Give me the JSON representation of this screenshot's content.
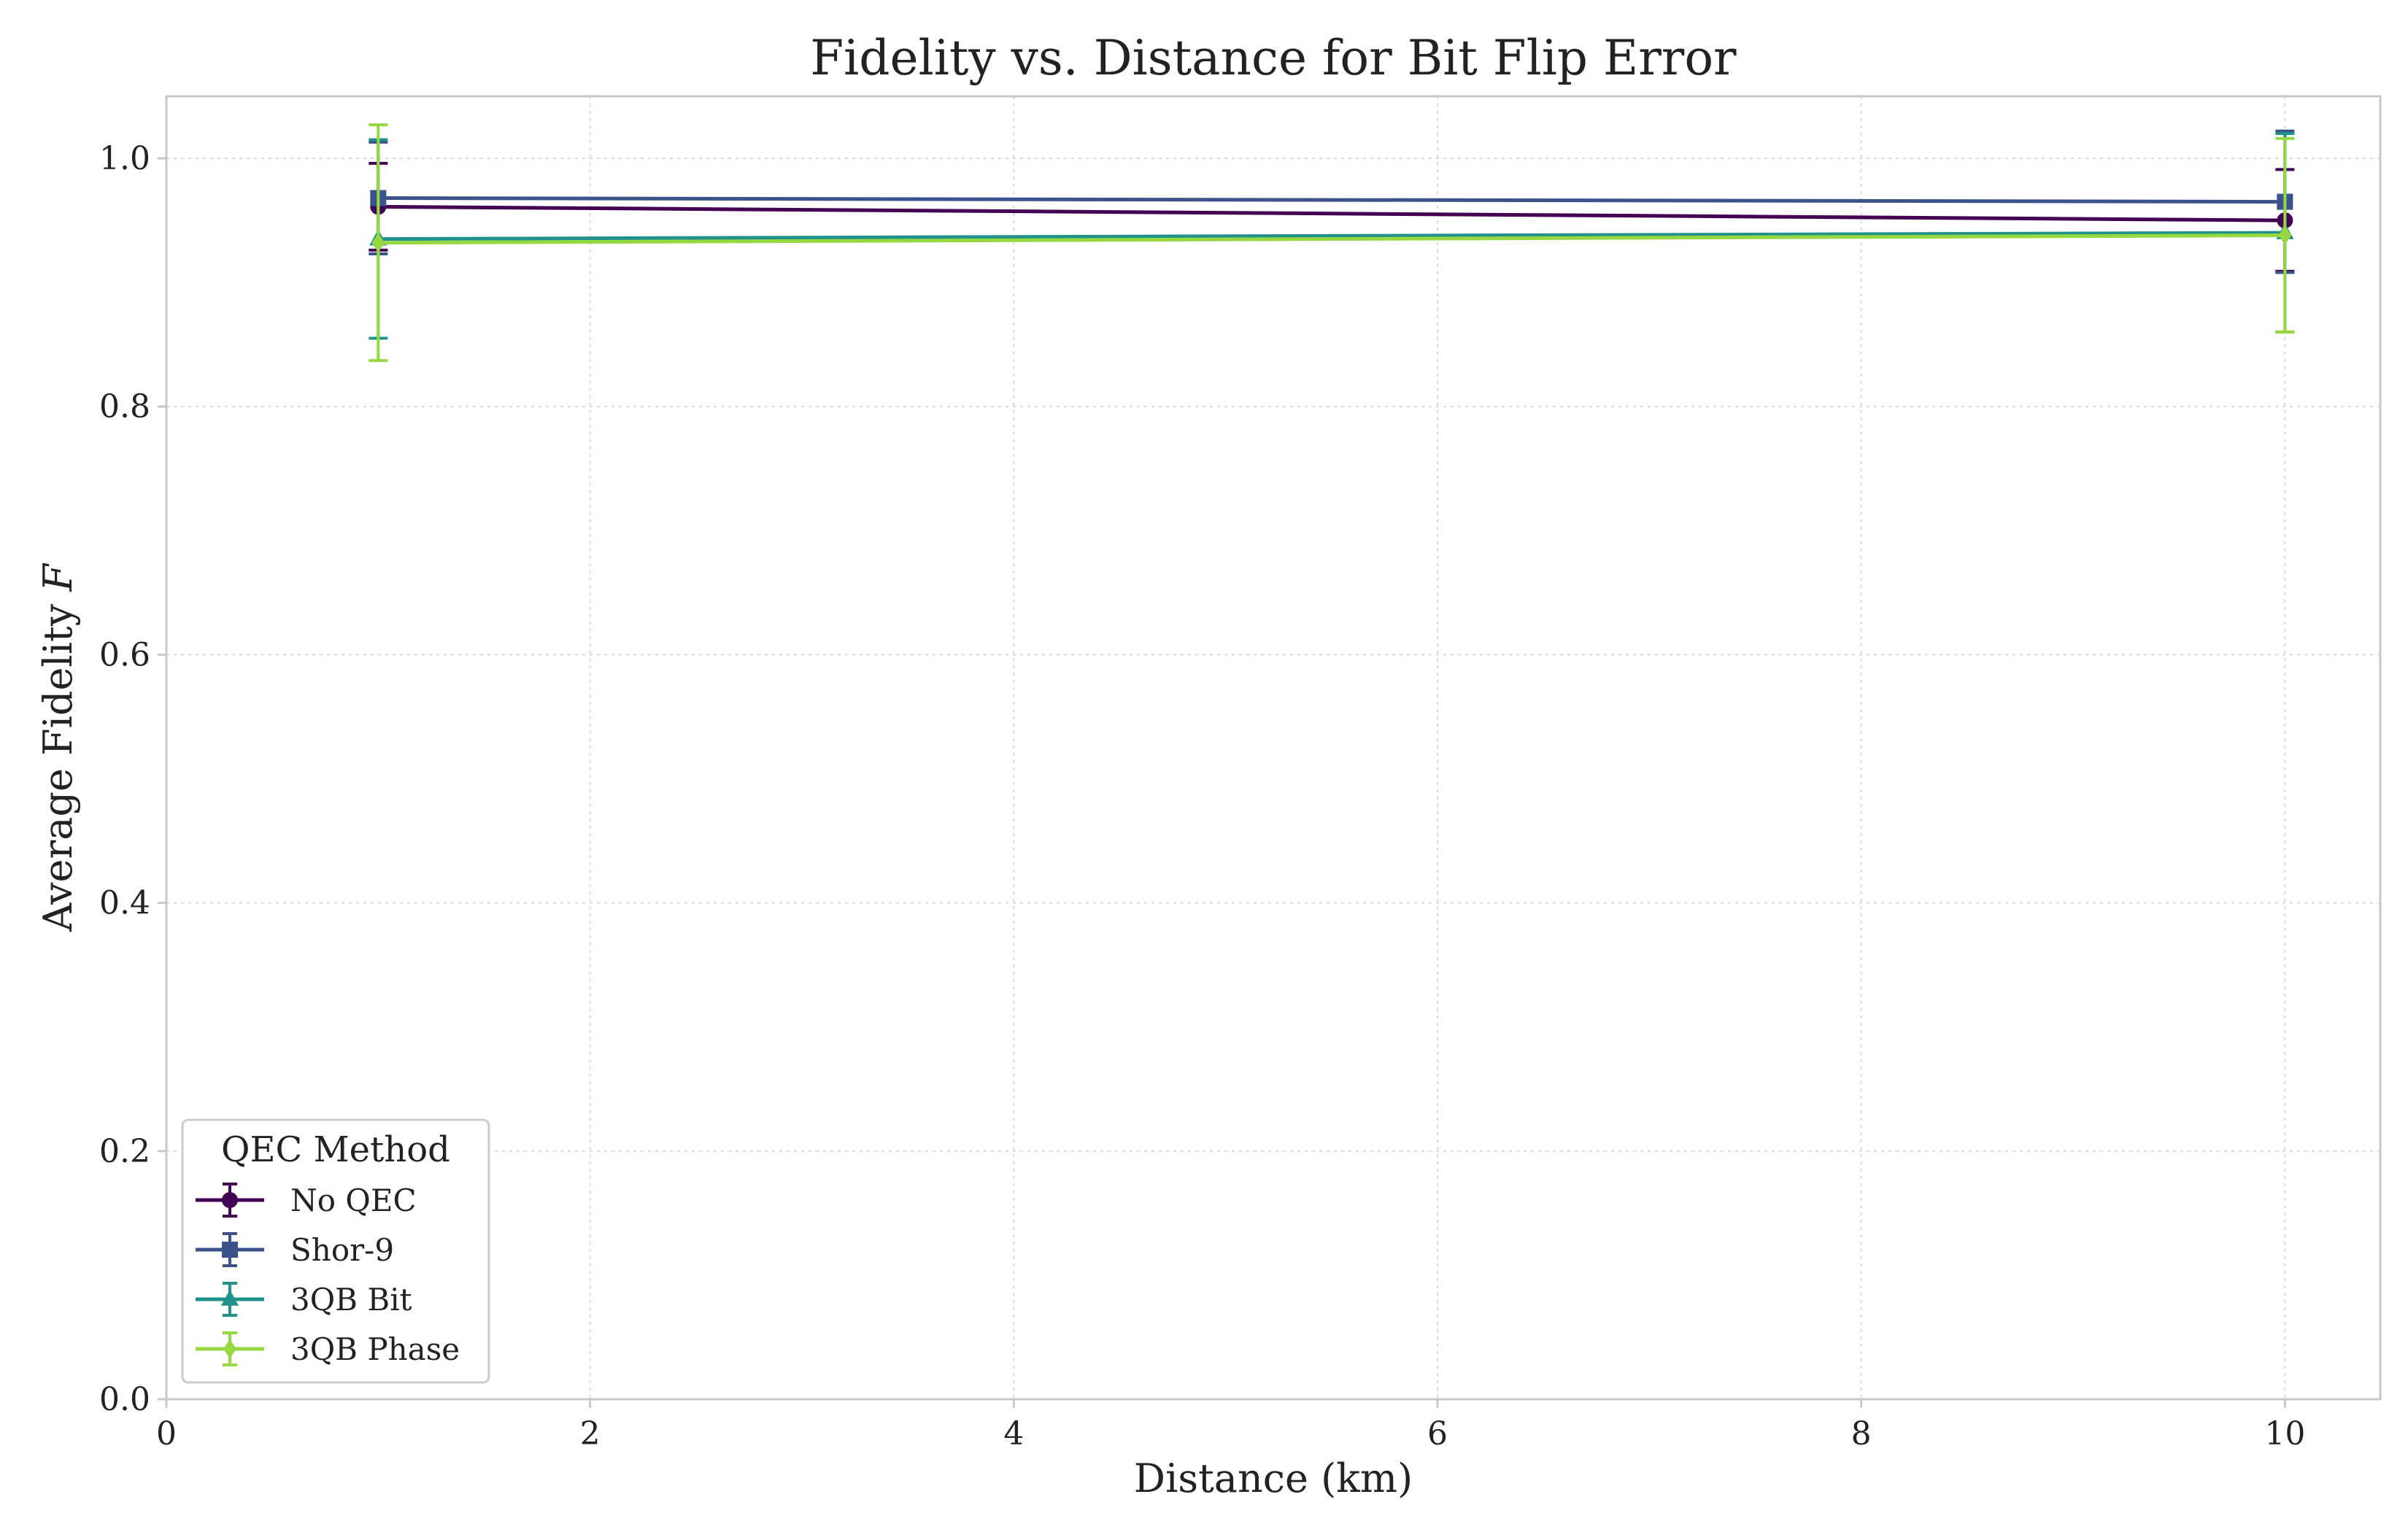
{
  "chart_data": {
    "type": "line",
    "title": "Fidelity vs. Distance for Bit Flip Error",
    "xlabel": "Distance (km)",
    "ylabel": "Average Fidelity F",
    "xlim": [
      0,
      10.45
    ],
    "ylim": [
      0,
      1.05
    ],
    "xticks": [
      0,
      2,
      4,
      6,
      8,
      10
    ],
    "xtick_labels": [
      "0",
      "2",
      "4",
      "6",
      "8",
      "10"
    ],
    "yticks": [
      0.0,
      0.2,
      0.4,
      0.6,
      0.8,
      1.0
    ],
    "ytick_labels": [
      "0.0",
      "0.2",
      "0.4",
      "0.6",
      "0.8",
      "1.0"
    ],
    "grid": true,
    "legend": {
      "title": "QEC Method",
      "placement": "lower-left"
    },
    "x": [
      1,
      10
    ],
    "series": [
      {
        "name": "No QEC",
        "marker": "circle",
        "color": "#440154",
        "values": [
          0.961,
          0.95
        ],
        "errors": [
          0.035,
          0.041
        ]
      },
      {
        "name": "Shor-9",
        "marker": "square",
        "color": "#3b528b",
        "values": [
          0.968,
          0.965
        ],
        "errors": [
          0.045,
          0.057
        ]
      },
      {
        "name": "3QB Bit",
        "marker": "triangle",
        "color": "#21918c",
        "values": [
          0.935,
          0.94
        ],
        "errors": [
          0.08,
          0.08
        ]
      },
      {
        "name": "3QB Phase",
        "marker": "diamond",
        "color": "#95d840",
        "values": [
          0.932,
          0.938
        ],
        "errors": [
          0.095,
          0.078
        ]
      }
    ]
  }
}
